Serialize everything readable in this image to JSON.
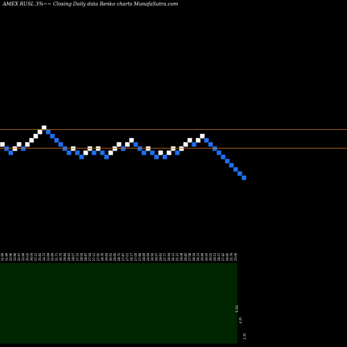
{
  "chart_data": {
    "type": "renko",
    "title": "AMEX RUSL 3%~~ Closing Daily data Renko charts MunafaSutra.com",
    "colors": {
      "background": "#000000",
      "up_brick": "#ffffff",
      "down_brick": "#1e6ff0",
      "resistance_line": "#b5651d",
      "volume_panel": "#002600",
      "text": "#ffffff"
    },
    "reference_lines": [
      {
        "name": "upper",
        "price": 34.9
      },
      {
        "name": "lower",
        "price": 30.4
      }
    ],
    "x_tick_labels": [
      "32.99",
      "31.99",
      "32.96",
      "33.96",
      "32.97",
      "33.99",
      "35.02",
      "36.04",
      "37.12",
      "35.83",
      "34.73",
      "33.69",
      "32.69",
      "31.71",
      "30.75",
      "29.84",
      "28.93",
      "28.07",
      "27.23",
      "28.04",
      "28.87",
      "27.94",
      "27.12",
      "27.92",
      "28.76",
      "29.64",
      "30.53",
      "29.60",
      "28.72",
      "27.87",
      "27.01",
      "26.17",
      "27.00",
      "27.84",
      "28.69",
      "29.59",
      "30.50",
      "29.57",
      "28.63",
      "27.77",
      "26.94",
      "26.12",
      "25.31",
      "26.08",
      "26.82",
      "27.58",
      "28.34",
      "29.13",
      "29.99",
      "30.93",
      "30.02",
      "29.13",
      "28.27",
      "27.42",
      "26.60",
      "25.79",
      "25.06"
    ],
    "bricks": [
      {
        "dir": "up",
        "level": 31.9
      },
      {
        "dir": "down",
        "level": 30.9
      },
      {
        "dir": "down",
        "level": 29.9
      },
      {
        "dir": "up",
        "level": 30.9
      },
      {
        "dir": "up",
        "level": 31.9
      },
      {
        "dir": "down",
        "level": 30.9
      },
      {
        "dir": "up",
        "level": 31.9
      },
      {
        "dir": "up",
        "level": 32.9
      },
      {
        "dir": "up",
        "level": 33.9
      },
      {
        "dir": "up",
        "level": 34.9
      },
      {
        "dir": "up",
        "level": 35.9
      },
      {
        "dir": "down",
        "level": 34.9
      },
      {
        "dir": "down",
        "level": 33.9
      },
      {
        "dir": "down",
        "level": 32.9
      },
      {
        "dir": "down",
        "level": 31.9
      },
      {
        "dir": "down",
        "level": 30.9
      },
      {
        "dir": "down",
        "level": 29.9
      },
      {
        "dir": "up",
        "level": 30.9
      },
      {
        "dir": "down",
        "level": 29.9
      },
      {
        "dir": "down",
        "level": 28.9
      },
      {
        "dir": "up",
        "level": 29.9
      },
      {
        "dir": "up",
        "level": 30.9
      },
      {
        "dir": "down",
        "level": 29.9
      },
      {
        "dir": "up",
        "level": 30.9
      },
      {
        "dir": "down",
        "level": 29.9
      },
      {
        "dir": "down",
        "level": 28.9
      },
      {
        "dir": "up",
        "level": 29.9
      },
      {
        "dir": "up",
        "level": 30.9
      },
      {
        "dir": "up",
        "level": 31.9
      },
      {
        "dir": "down",
        "level": 30.9
      },
      {
        "dir": "up",
        "level": 31.9
      },
      {
        "dir": "up",
        "level": 32.9
      },
      {
        "dir": "down",
        "level": 31.9
      },
      {
        "dir": "down",
        "level": 30.9
      },
      {
        "dir": "down",
        "level": 29.9
      },
      {
        "dir": "up",
        "level": 30.9
      },
      {
        "dir": "down",
        "level": 29.9
      },
      {
        "dir": "down",
        "level": 28.9
      },
      {
        "dir": "up",
        "level": 29.9
      },
      {
        "dir": "down",
        "level": 28.9
      },
      {
        "dir": "up",
        "level": 29.9
      },
      {
        "dir": "up",
        "level": 30.9
      },
      {
        "dir": "down",
        "level": 29.9
      },
      {
        "dir": "up",
        "level": 30.9
      },
      {
        "dir": "up",
        "level": 31.9
      },
      {
        "dir": "up",
        "level": 32.9
      },
      {
        "dir": "down",
        "level": 31.9
      },
      {
        "dir": "up",
        "level": 32.9
      },
      {
        "dir": "up",
        "level": 33.9
      },
      {
        "dir": "down",
        "level": 32.9
      },
      {
        "dir": "down",
        "level": 31.9
      },
      {
        "dir": "down",
        "level": 30.9
      },
      {
        "dir": "down",
        "level": 29.9
      },
      {
        "dir": "down",
        "level": 28.9
      },
      {
        "dir": "down",
        "level": 27.9
      },
      {
        "dir": "down",
        "level": 26.9
      },
      {
        "dir": "down",
        "level": 25.9
      },
      {
        "dir": "down",
        "level": 24.9
      },
      {
        "dir": "down",
        "level": 23.9
      }
    ],
    "volume_labels": [
      "5.1%",
      "4.35",
      "2.35"
    ]
  }
}
